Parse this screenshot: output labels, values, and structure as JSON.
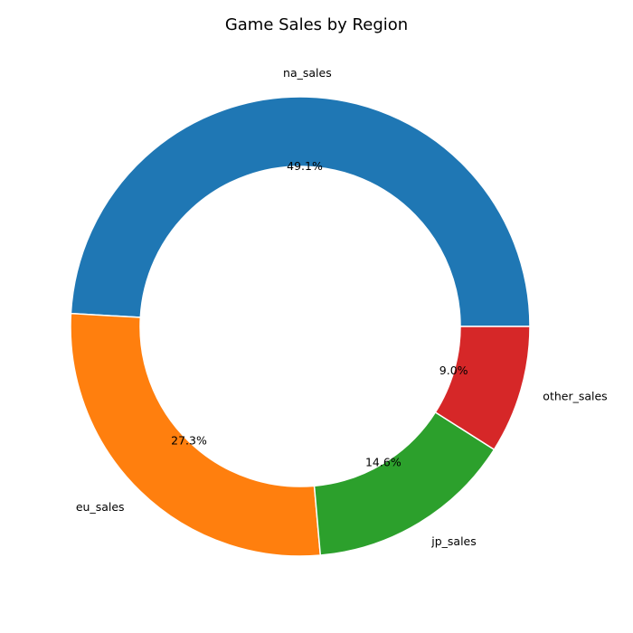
{
  "chart_data": {
    "type": "pie",
    "variant": "donut",
    "title": "Game Sales by Region",
    "categories": [
      "na_sales",
      "eu_sales",
      "jp_sales",
      "other_sales"
    ],
    "values": [
      49.1,
      27.3,
      14.6,
      9.0
    ],
    "value_labels": [
      "49.1%",
      "27.3%",
      "14.6%",
      "9.0%"
    ],
    "colors": [
      "#1f77b4",
      "#ff7f0e",
      "#2ca02c",
      "#d62728"
    ],
    "start_angle_deg": 0,
    "direction": "counterclockwise",
    "legend": "none"
  }
}
